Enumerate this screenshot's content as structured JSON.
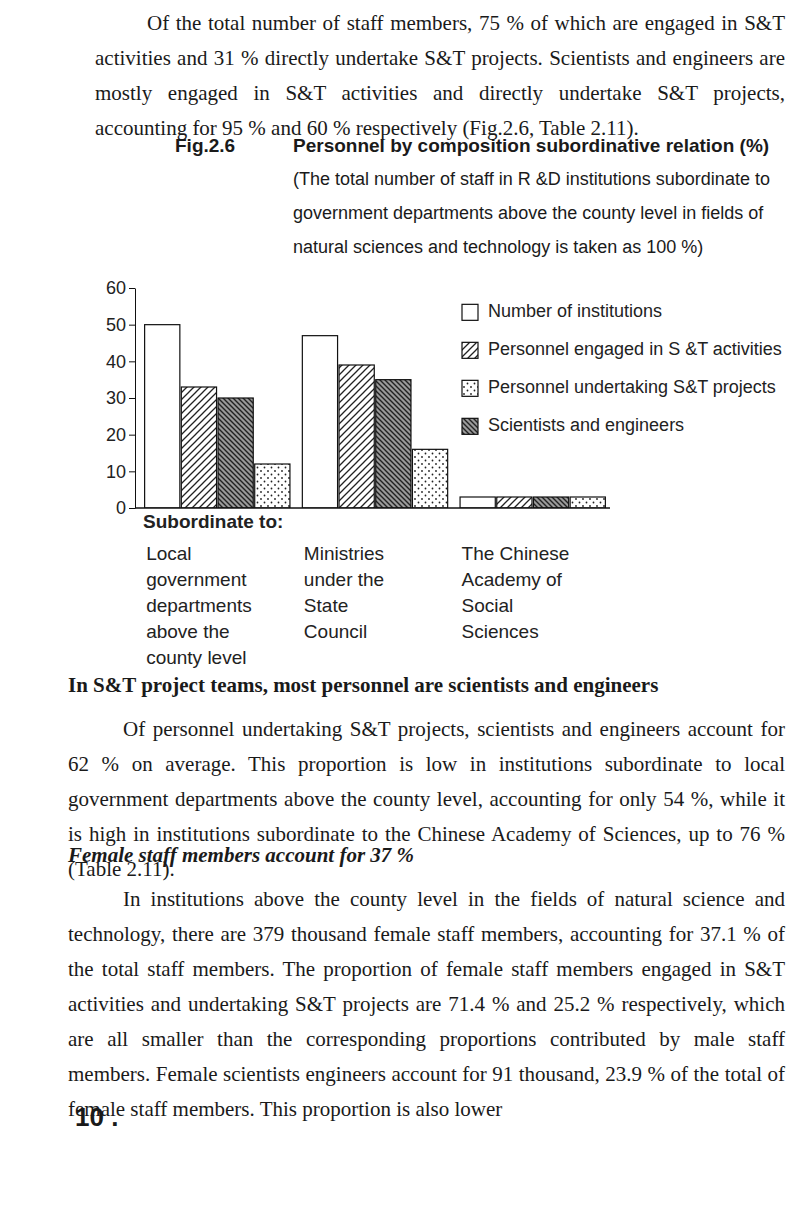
{
  "document": {
    "paragraph_1": "Of the total number of staff members, 75 % of which are engaged in S&T activities and 31 % directly undertake S&T projects. Scientists and engineers are mostly engaged in S&T activities and directly undertake S&T projects, accounting for 95 % and 60 % respectively (Fig.2.6, Table 2.11).",
    "heading_2": "In S&T project teams, most personnel are scientists and engineers",
    "paragraph_2": "Of personnel undertaking S&T projects, scientists and engineers account for 62 % on average. This proportion is low in institutions subordinate to local government departments above the county level, accounting for only 54 %, while it is high in institutions subordinate to the Chinese Academy of Sciences, up to 76 % (Table 2.11).",
    "heading_3": "Female staff members account for 37 %",
    "paragraph_3": "In institutions above the county level in the fields of natural science and technology, there are 379 thousand female staff members, accounting for 37.1 % of the total staff members. The proportion of female staff members engaged in S&T activities and undertaking S&T projects are 71.4 % and 25.2 % respectively, which are all smaller than the corresponding proportions contributed by male staff members. Female scientists engineers account for 91 thousand, 23.9 % of the total of female staff members. This proportion is also lower",
    "page_number": "10 ."
  },
  "chart_data": {
    "type": "bar",
    "title": "Personnel by composition subordinative relation (%)",
    "subtitle": "(The total number of staff in R &D institutions subordinate to government departments above the county level in fields of natural sciences and technology is taken as 100 %)",
    "annotations": [
      "Fig.2.6"
    ],
    "xlabel": "Subordinate to:",
    "categories": [
      "Local government departments above the county level",
      "Ministries under the State Council",
      "The Chinese Academy of Social Sciences"
    ],
    "series": [
      {
        "name": "Number of institutions",
        "color": "#ffffff",
        "values": [
          50,
          47,
          3
        ]
      },
      {
        "name": "Personnel engaged in S &T activities",
        "color": "#ffffff",
        "values": [
          33,
          39,
          3
        ]
      },
      {
        "name": "Personnel undertaking S&T projects",
        "color": "#ffffff",
        "values": [
          12,
          16,
          3
        ]
      },
      {
        "name": "Scientists and engineers",
        "color": "#9a9a9a",
        "values": [
          30,
          35,
          3
        ]
      }
    ],
    "ylim": [
      0,
      60
    ],
    "yticks": [
      0,
      10,
      20,
      30,
      40,
      50,
      60
    ],
    "grid": false,
    "legend": "top-right"
  }
}
